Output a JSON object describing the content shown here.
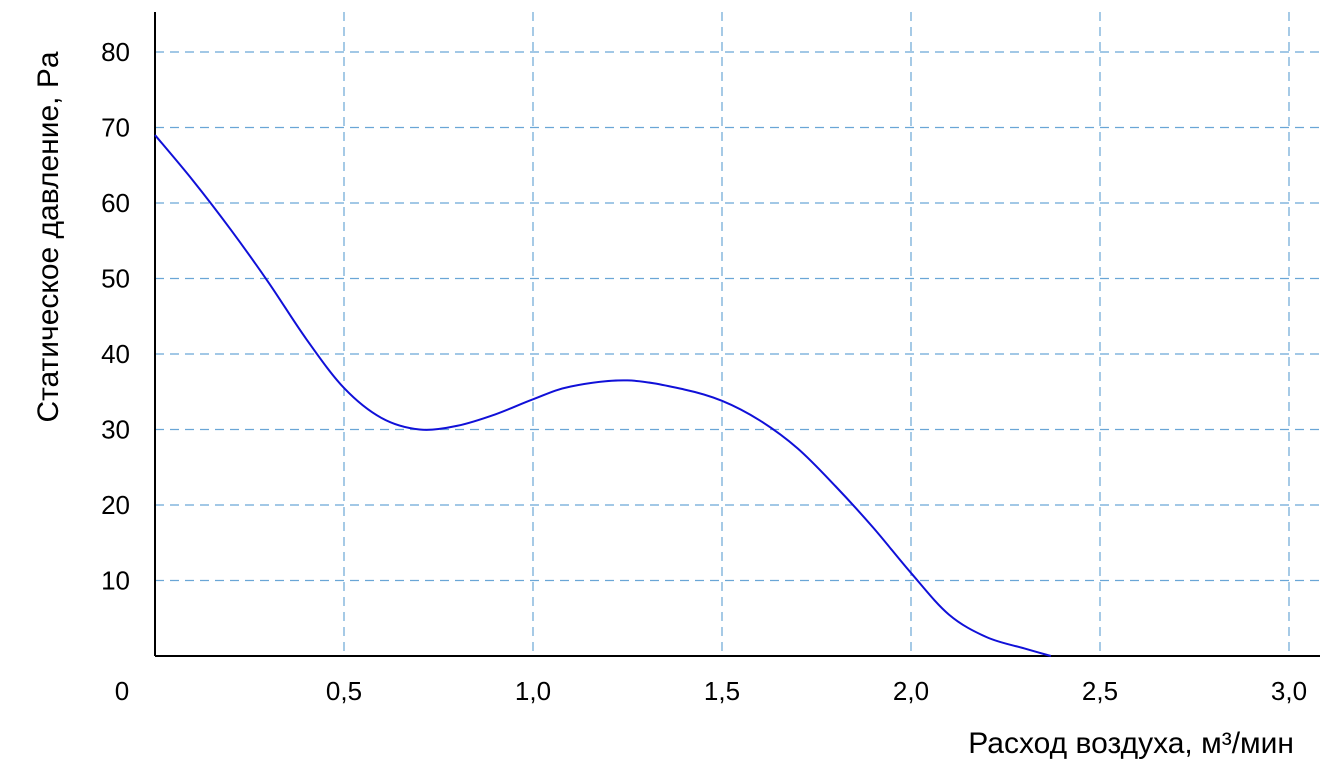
{
  "chart_data": {
    "type": "line",
    "title": "",
    "xlabel": "Расход воздуха, м³/мин",
    "ylabel": "Статическое давление, Pa",
    "xlim": [
      0,
      3.05
    ],
    "ylim": [
      0,
      85
    ],
    "x_ticks": [
      0.5,
      1.0,
      1.5,
      2.0,
      2.5,
      3.0
    ],
    "x_tick_labels": [
      "0,5",
      "1,0",
      "1,5",
      "2,0",
      "2,5",
      "3,0"
    ],
    "origin_label": "0",
    "y_ticks": [
      10,
      20,
      30,
      40,
      50,
      60,
      70,
      80
    ],
    "y_tick_labels": [
      "10",
      "20",
      "30",
      "40",
      "50",
      "60",
      "70",
      "80"
    ],
    "grid": true,
    "colors": {
      "curve": "#1010d8",
      "grid": "#6aa6d6",
      "axis": "#000000"
    },
    "series": [
      {
        "x": [
          0,
          0.1,
          0.2,
          0.3,
          0.4,
          0.5,
          0.6,
          0.7,
          0.8,
          0.9,
          1.0,
          1.1,
          1.25,
          1.4,
          1.5,
          1.6,
          1.7,
          1.8,
          1.9,
          2.0,
          2.1,
          2.2,
          2.3,
          2.37
        ],
        "y": [
          69,
          63,
          56.5,
          49.5,
          42,
          35.5,
          31.5,
          30,
          30.5,
          32,
          34,
          35.7,
          36.5,
          35.3,
          33.8,
          31.2,
          27.5,
          22.5,
          17,
          11,
          5.5,
          2.5,
          1,
          0
        ]
      }
    ]
  }
}
